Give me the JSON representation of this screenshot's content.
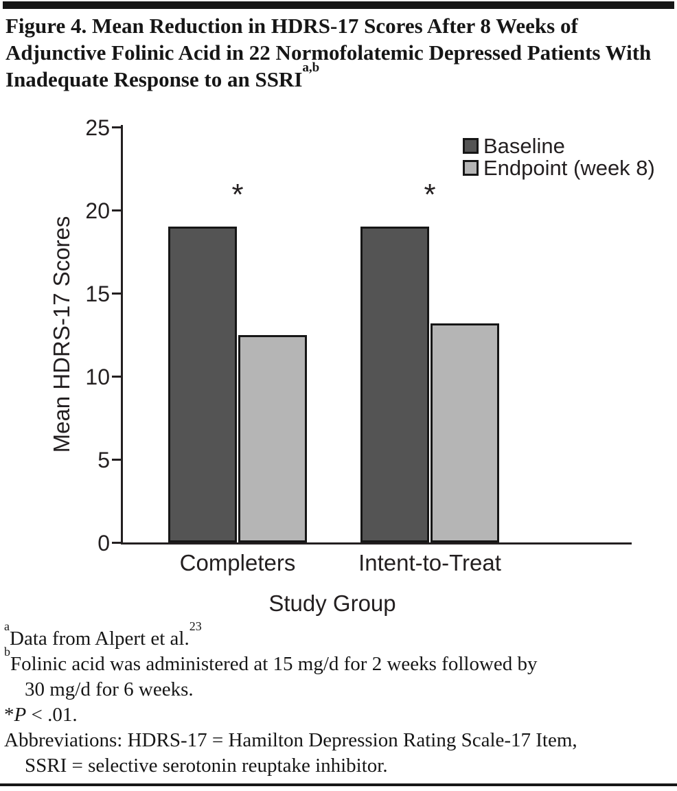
{
  "title": {
    "text": "Figure 4. Mean Reduction in HDRS-17 Scores After 8 Weeks of Adjunctive Folinic Acid in 22 Normofolatemic Depressed Patients With Inadequate Response to an SSRI",
    "superscript": "a,b"
  },
  "chart_data": {
    "type": "bar",
    "categories": [
      "Completers",
      "Intent-to-Treat"
    ],
    "series": [
      {
        "name": "Baseline",
        "values": [
          19.0,
          19.0
        ],
        "color": "#545454"
      },
      {
        "name": "Endpoint (week 8)",
        "values": [
          12.5,
          13.2
        ],
        "color": "#b5b5b5"
      }
    ],
    "title": "",
    "xlabel": "Study Group",
    "ylabel": "Mean HDRS-17 Scores",
    "ylim": [
      0,
      25
    ],
    "yticks": [
      0,
      5,
      10,
      15,
      20,
      25
    ],
    "grid": false,
    "legend_position": "top-right",
    "annotations": [
      {
        "text": "*",
        "category_index": 0,
        "meaning": "P < .01"
      },
      {
        "text": "*",
        "category_index": 1,
        "meaning": "P < .01"
      }
    ]
  },
  "footnotes": {
    "a": {
      "sup": "a",
      "text": "Data from Alpert et al.",
      "ref": "23"
    },
    "b": {
      "sup": "b",
      "line1": "Folinic acid was administered at 15 mg/d for 2 weeks followed by",
      "line2": "30 mg/d for 6 weeks."
    },
    "p": {
      "star": "*",
      "p": "P",
      "rest": " < .01."
    },
    "abbr": {
      "line1": "Abbreviations: HDRS-17 = Hamilton Depression Rating Scale-17 Item,",
      "line2": "SSRI = selective serotonin reuptake inhibitor."
    }
  },
  "colors": {
    "ink": "#231f20",
    "rule": "#161616",
    "baseline_fill": "#545454",
    "endpoint_fill": "#b5b5b5"
  }
}
